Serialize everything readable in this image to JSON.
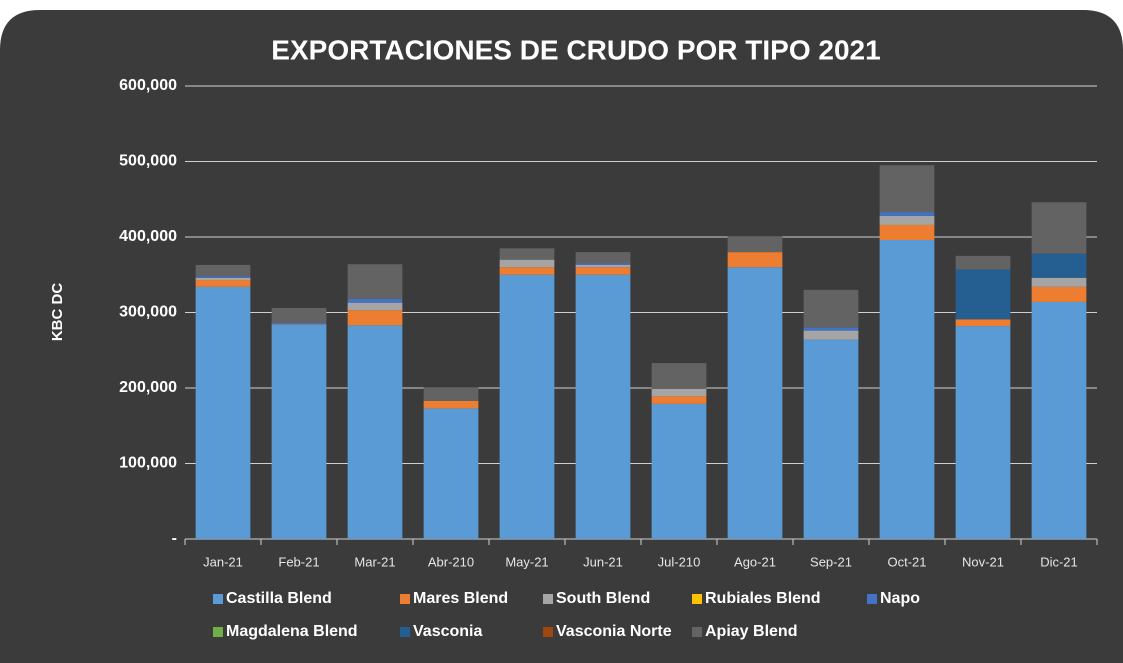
{
  "chart_data": {
    "type": "stacked_bar",
    "title": "EXPORTACIONES DE CRUDO POR TIPO 2021",
    "y_label": "KBC DC",
    "categories": [
      "Jan-21",
      "Feb-21",
      "Mar-21",
      "Abr-210",
      "May-21",
      "Jun-21",
      "Jul-210",
      "Ago-21",
      "Sep-21",
      "Oct-21",
      "Nov-21",
      "Dic-21"
    ],
    "series": [
      {
        "name": "Castilla Blend",
        "color": "#5b9bd5",
        "values": [
          334000,
          283000,
          283000,
          173000,
          350000,
          350000,
          179000,
          360000,
          264000,
          396000,
          282000,
          314000
        ]
      },
      {
        "name": "Mares Blend",
        "color": "#ed7d31",
        "values": [
          9000,
          0,
          20000,
          10000,
          10000,
          10000,
          10000,
          20000,
          0,
          20000,
          9000,
          20000
        ]
      },
      {
        "name": "South Blend",
        "color": "#a5a5a5",
        "values": [
          3000,
          1000,
          10000,
          0,
          10000,
          3000,
          10000,
          0,
          12000,
          12000,
          0,
          12000
        ]
      },
      {
        "name": "Rubiales Blend",
        "color": "#ffc000",
        "values": [
          0,
          0,
          0,
          0,
          0,
          0,
          0,
          0,
          0,
          0,
          0,
          0
        ]
      },
      {
        "name": "Napo",
        "color": "#4472c4",
        "values": [
          2000,
          2000,
          5000,
          0,
          0,
          2000,
          0,
          0,
          4000,
          5000,
          0,
          0
        ]
      },
      {
        "name": "Magdalena Blend",
        "color": "#70ad47",
        "values": [
          0,
          0,
          0,
          0,
          0,
          0,
          0,
          0,
          0,
          0,
          0,
          0
        ]
      },
      {
        "name": "Vasconia",
        "color": "#255e91",
        "values": [
          0,
          0,
          0,
          0,
          0,
          0,
          0,
          0,
          0,
          0,
          66000,
          32000
        ]
      },
      {
        "name": "Vasconia Norte",
        "color": "#9e480e",
        "values": [
          0,
          0,
          0,
          0,
          0,
          0,
          0,
          0,
          0,
          0,
          0,
          0
        ]
      },
      {
        "name": "Apiay Blend",
        "color": "#636363",
        "values": [
          15000,
          20000,
          46000,
          18000,
          15000,
          15000,
          34000,
          21000,
          50000,
          62000,
          18000,
          68000
        ]
      }
    ],
    "ylim": [
      0,
      600000
    ],
    "yticks": [
      {
        "value": 0,
        "label": "-"
      },
      {
        "value": 100000,
        "label": "100,000"
      },
      {
        "value": 200000,
        "label": "200,000"
      },
      {
        "value": 300000,
        "label": "300,000"
      },
      {
        "value": 400000,
        "label": "400,000"
      },
      {
        "value": 500000,
        "label": "500,000"
      },
      {
        "value": 600000,
        "label": "600,000"
      }
    ],
    "grid": true
  }
}
